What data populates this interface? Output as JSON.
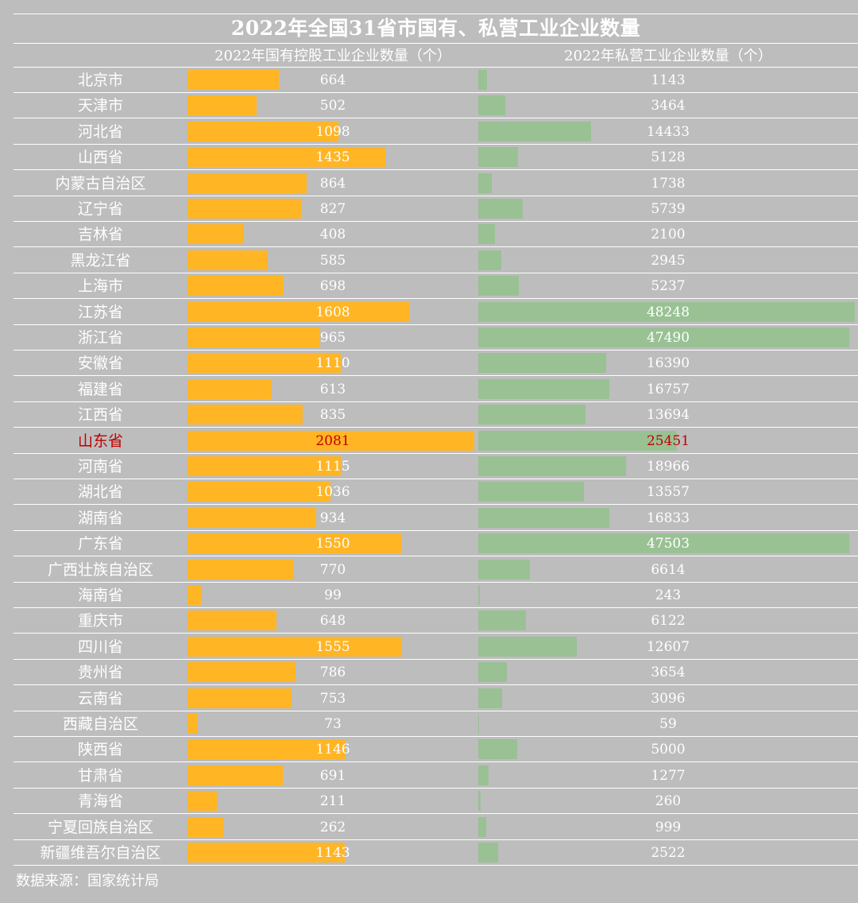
{
  "chart_data": {
    "type": "bar",
    "title": "2022年全国31省市国有、私营工业企业数量",
    "series": [
      {
        "name": "2022年国有控股工业企业数量（个）",
        "color": "#ffb524",
        "max": 2081
      },
      {
        "name": "2022年私营工业企业数量（个）",
        "color": "#99c194",
        "max": 48248
      }
    ],
    "highlight_color": "#c00000",
    "rows": [
      {
        "name": "北京市",
        "soe": 664,
        "pri": 1143
      },
      {
        "name": "天津市",
        "soe": 502,
        "pri": 3464
      },
      {
        "name": "河北省",
        "soe": 1098,
        "pri": 14433
      },
      {
        "name": "山西省",
        "soe": 1435,
        "pri": 5128
      },
      {
        "name": "内蒙古自治区",
        "soe": 864,
        "pri": 1738
      },
      {
        "name": "辽宁省",
        "soe": 827,
        "pri": 5739
      },
      {
        "name": "吉林省",
        "soe": 408,
        "pri": 2100
      },
      {
        "name": "黑龙江省",
        "soe": 585,
        "pri": 2945
      },
      {
        "name": "上海市",
        "soe": 698,
        "pri": 5237
      },
      {
        "name": "江苏省",
        "soe": 1608,
        "pri": 48248
      },
      {
        "name": "浙江省",
        "soe": 965,
        "pri": 47490
      },
      {
        "name": "安徽省",
        "soe": 1110,
        "pri": 16390
      },
      {
        "name": "福建省",
        "soe": 613,
        "pri": 16757
      },
      {
        "name": "江西省",
        "soe": 835,
        "pri": 13694
      },
      {
        "name": "山东省",
        "soe": 2081,
        "pri": 25451,
        "highlight": true
      },
      {
        "name": "河南省",
        "soe": 1115,
        "pri": 18966
      },
      {
        "name": "湖北省",
        "soe": 1036,
        "pri": 13557
      },
      {
        "name": "湖南省",
        "soe": 934,
        "pri": 16833
      },
      {
        "name": "广东省",
        "soe": 1550,
        "pri": 47503
      },
      {
        "name": "广西壮族自治区",
        "soe": 770,
        "pri": 6614
      },
      {
        "name": "海南省",
        "soe": 99,
        "pri": 243
      },
      {
        "name": "重庆市",
        "soe": 648,
        "pri": 6122
      },
      {
        "name": "四川省",
        "soe": 1555,
        "pri": 12607
      },
      {
        "name": "贵州省",
        "soe": 786,
        "pri": 3654
      },
      {
        "name": "云南省",
        "soe": 753,
        "pri": 3096
      },
      {
        "name": "西藏自治区",
        "soe": 73,
        "pri": 59
      },
      {
        "name": "陕西省",
        "soe": 1146,
        "pri": 5000
      },
      {
        "name": "甘肃省",
        "soe": 691,
        "pri": 1277
      },
      {
        "name": "青海省",
        "soe": 211,
        "pri": 260
      },
      {
        "name": "宁夏回族自治区",
        "soe": 262,
        "pri": 999
      },
      {
        "name": "新疆维吾尔自治区",
        "soe": 1143,
        "pri": 2522
      }
    ]
  },
  "footer": {
    "source": "数据来源：国家统计局"
  }
}
